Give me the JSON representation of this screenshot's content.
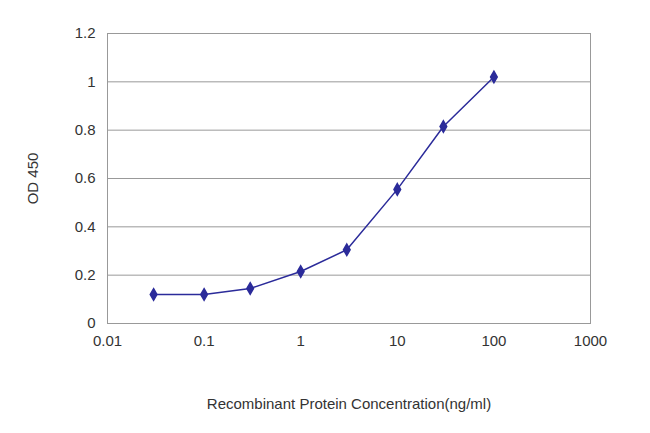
{
  "chart_data": {
    "type": "line",
    "x_label": "Recombinant Protein Concentration(ng/ml)",
    "y_label": "OD 450",
    "x": [
      0.03,
      0.1,
      0.3,
      1,
      3,
      10,
      30,
      100
    ],
    "values": [
      0.12,
      0.12,
      0.145,
      0.215,
      0.305,
      0.555,
      0.815,
      1.02
    ],
    "color": "#2b2b9a",
    "marker": "diamond",
    "log": "x",
    "grid": true,
    "xlim": [
      0.01,
      1000
    ],
    "xticks": [
      0.01,
      0.1,
      1,
      10,
      100,
      1000
    ],
    "ylim": [
      0,
      1.2
    ],
    "yticks": [
      0,
      0.2,
      0.4,
      0.6,
      0.8,
      1,
      1.2
    ]
  }
}
